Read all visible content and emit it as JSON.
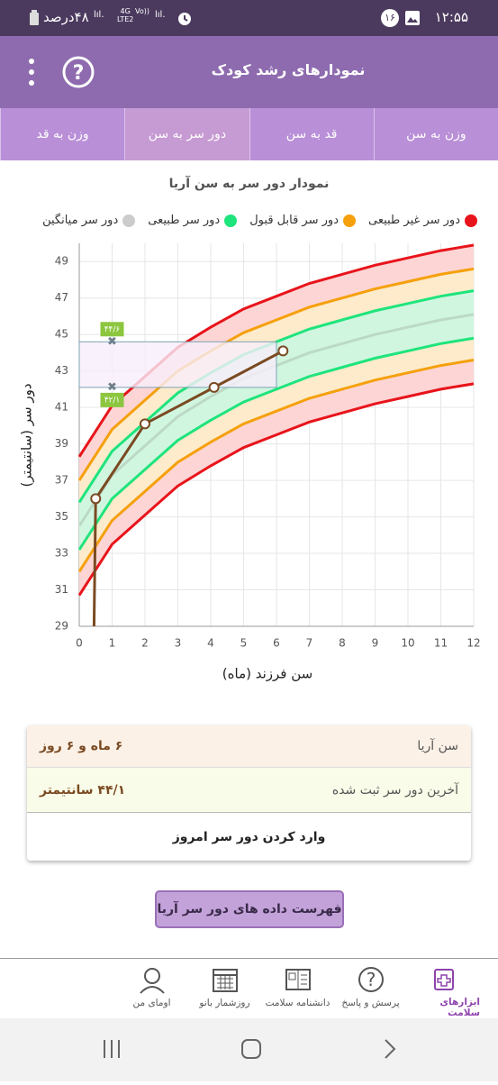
{
  "status_bar": {
    "time": "۱۲:۵۵",
    "notification_count": "۱۶",
    "battery": "۴۸درصد",
    "network": "4G",
    "network_sub": "LTE2",
    "volte": "Vo))"
  },
  "app_bar": {
    "title": "نمودارهای رشد کودک"
  },
  "tabs": {
    "items": [
      "وزن به سن",
      "قد به سن",
      "دور سر به سن",
      "وزن به قد"
    ],
    "selected": 2
  },
  "chart_data": {
    "type": "line",
    "title": "نمودار دور سر به سن آریا",
    "x_label": "سن فرزند (ماه)",
    "y_label": "دور سر (سانتیمتر)",
    "xlim": [
      0,
      12
    ],
    "xticks": [
      0,
      1,
      2,
      3,
      4,
      5,
      6,
      7,
      8,
      9,
      10,
      11,
      12
    ],
    "ylim": [
      29,
      50
    ],
    "yticks": [
      29,
      31,
      33,
      35,
      37,
      39,
      41,
      43,
      45,
      47,
      49
    ],
    "grid": true,
    "x": [
      0,
      1,
      2,
      3,
      4,
      5,
      6,
      7,
      8,
      9,
      10,
      11,
      12
    ],
    "series": [
      {
        "name": "دور سر غیر طبیعی",
        "color": "#e8141b",
        "fill": "#fdd5d5",
        "upper": [
          38.3,
          41.1,
          42.7,
          44.3,
          45.4,
          46.4,
          47.1,
          47.8,
          48.3,
          48.8,
          49.2,
          49.6,
          49.9
        ],
        "lower": [
          30.7,
          33.5,
          35.1,
          36.7,
          37.8,
          38.8,
          39.5,
          40.2,
          40.7,
          41.2,
          41.6,
          42.0,
          42.3
        ]
      },
      {
        "name": "دور سر قابل قبول",
        "color": "#f5a00c",
        "fill": "#fdebcb",
        "upper": [
          37.0,
          39.8,
          41.4,
          43.0,
          44.1,
          45.1,
          45.8,
          46.5,
          47.0,
          47.5,
          47.9,
          48.3,
          48.6
        ],
        "lower": [
          32.0,
          34.8,
          36.4,
          38.0,
          39.1,
          40.1,
          40.8,
          41.5,
          42.0,
          42.5,
          42.9,
          43.3,
          43.6
        ]
      },
      {
        "name": "دور سر طبیعی",
        "color": "#1ee47c",
        "fill": "#d0f6e0",
        "upper": [
          35.8,
          38.6,
          40.2,
          41.8,
          42.9,
          43.9,
          44.6,
          45.3,
          45.8,
          46.3,
          46.7,
          47.1,
          47.4
        ],
        "lower": [
          33.2,
          36.0,
          37.6,
          39.2,
          40.3,
          41.3,
          42.0,
          42.7,
          43.2,
          43.7,
          44.1,
          44.5,
          44.8
        ]
      },
      {
        "name": "دور سر میانگین",
        "color": "#cccccc",
        "line_color": "#bcd9c6",
        "values": [
          34.5,
          37.3,
          38.9,
          40.5,
          41.6,
          42.6,
          43.3,
          44.0,
          44.5,
          45.0,
          45.4,
          45.8,
          46.1
        ]
      }
    ],
    "child": {
      "color": "#7a4a22",
      "x": [
        0.45,
        0.5,
        2,
        4.1,
        6.2
      ],
      "values": [
        29,
        36,
        40.1,
        42.1,
        44.1
      ]
    },
    "range_box": {
      "x": [
        0,
        6
      ],
      "x_marker": 1,
      "low": 42.1,
      "high": 44.6,
      "low_label": "۴۲/۱",
      "high_label": "۴۴/۶",
      "color": "#8cc63f"
    }
  },
  "info_card": {
    "rows": [
      {
        "label": "سن آریا",
        "value": "۶ ماه و ۶ روز"
      },
      {
        "label": "آخرین دور سر ثبت شده",
        "value": "۴۴/۱ سانتیمتر"
      }
    ],
    "action": "وارد کردن دور سر امروز"
  },
  "list_button": "فهرست داده های دور سر آریا",
  "bottom_nav": {
    "items": [
      "ابزارهای سلامت",
      "پرسش و پاسخ",
      "دانشنامه سلامت",
      "روزشمار بانو",
      "اومای من"
    ],
    "selected": 0
  }
}
